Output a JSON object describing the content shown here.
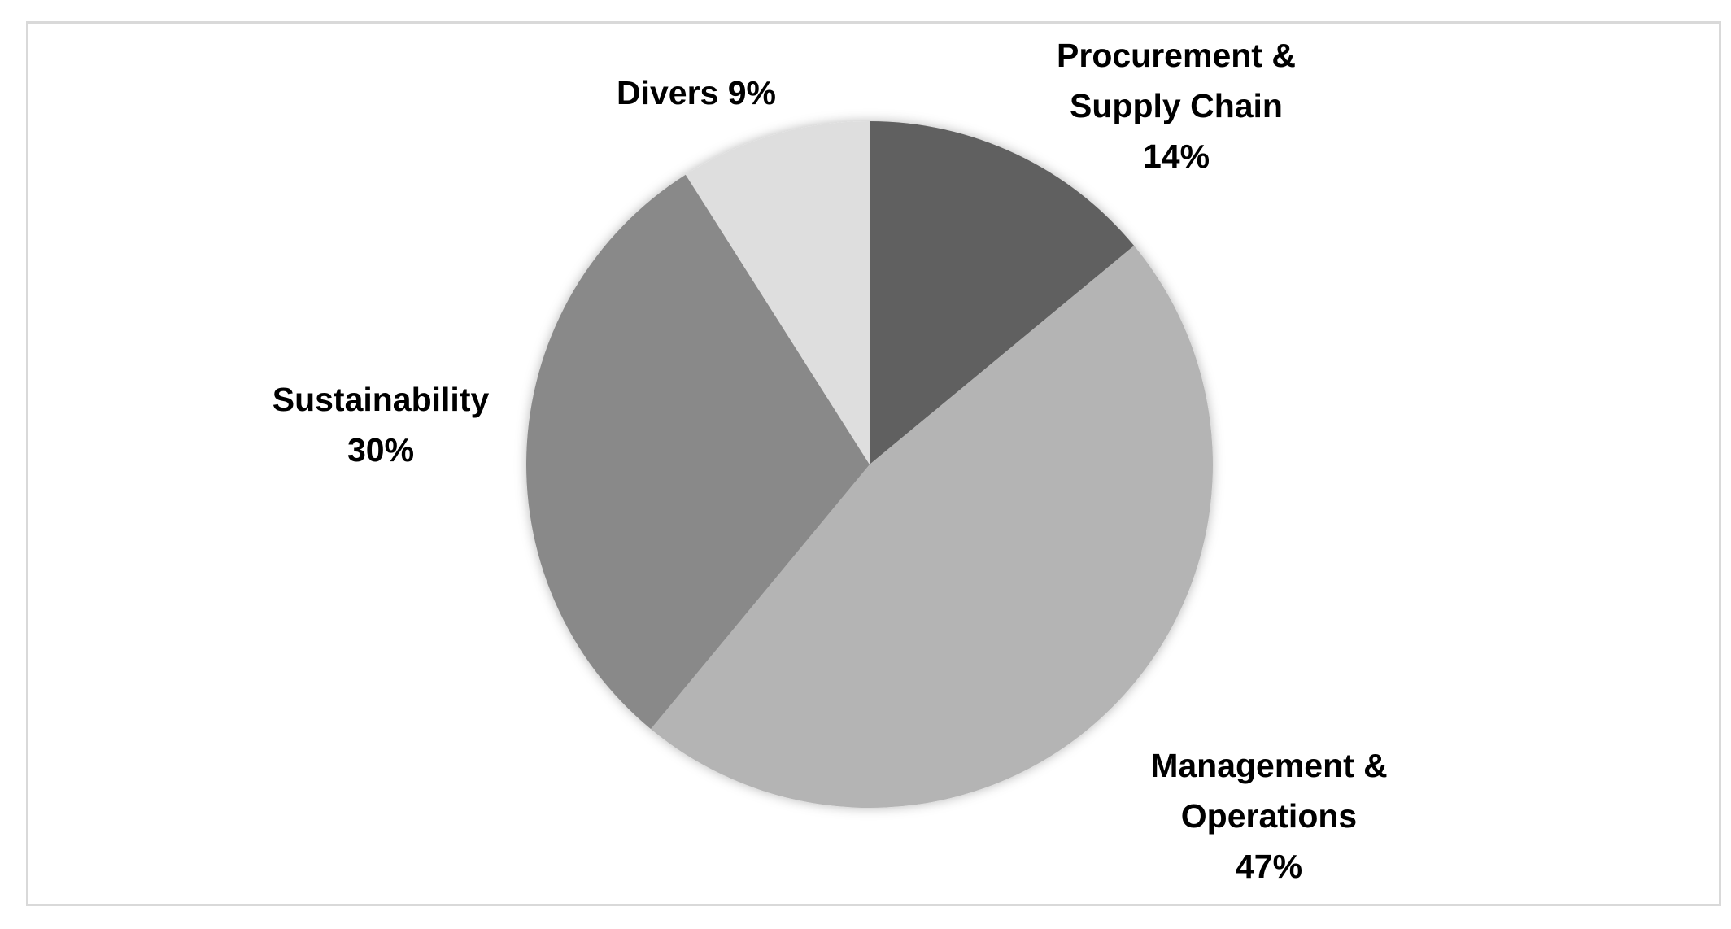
{
  "chart_data": {
    "type": "pie",
    "title": "",
    "legend": "none",
    "slices": [
      {
        "label_lines": [
          "Procurement &",
          "Supply Chain"
        ],
        "percent_label": "14%",
        "value": 14,
        "color": "#616161"
      },
      {
        "label_lines": [
          "Management &",
          "Operations"
        ],
        "percent_label": "47%",
        "value": 47,
        "color": "#b4b4b4"
      },
      {
        "label_lines": [
          "Sustainability"
        ],
        "percent_label": "30%",
        "value": 30,
        "color": "#898989"
      },
      {
        "label_lines": [
          "Divers 9%"
        ],
        "percent_label": "",
        "value": 9,
        "color": "#dedede"
      }
    ]
  }
}
